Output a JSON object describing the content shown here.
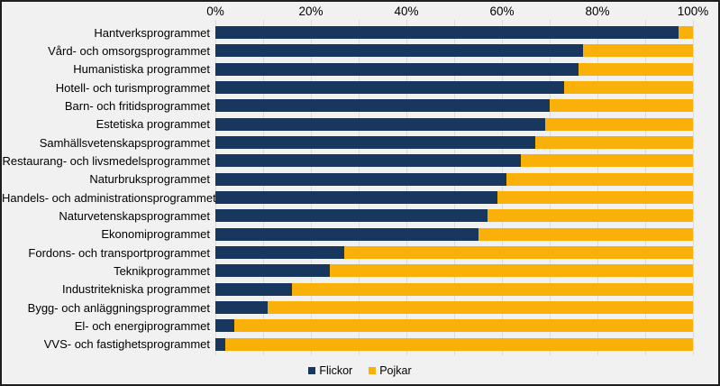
{
  "colors": {
    "flickor": "#17375E",
    "pojkar": "#F9B008",
    "background": "#F1F1F1",
    "gridline": "#DCDCDC",
    "border": "#1F1F1F"
  },
  "axis": {
    "ticks": [
      "0%",
      "20%",
      "40%",
      "60%",
      "80%",
      "100%"
    ],
    "minor_gridline_percents": [
      0,
      10,
      20,
      30,
      40,
      50,
      60,
      70,
      80,
      90,
      100
    ]
  },
  "legend": {
    "items": [
      {
        "label": "Flickor",
        "color": "#17375E"
      },
      {
        "label": "Pojkar",
        "color": "#F9B008"
      }
    ]
  },
  "chart_data": {
    "type": "bar",
    "orientation": "horizontal",
    "stacked": true,
    "title": "",
    "xlabel": "",
    "ylabel": "",
    "xlim": [
      0,
      100
    ],
    "unit": "%",
    "axis_position": "top",
    "legend_position": "bottom",
    "grid": "vertical gridlines every 10%",
    "categories": [
      "Hantverksprogrammet",
      "Vård- och omsorgsprogrammet",
      "Humanistiska programmet",
      "Hotell- och turismprogrammet",
      "Barn- och fritidsprogrammet",
      "Estetiska programmet",
      "Samhällsvetenskapsprogrammet",
      "Restaurang- och livsmedelsprogrammet",
      "Naturbruksprogrammet",
      "Handels- och administrationsprogrammet",
      "Naturvetenskapsprogrammet",
      "Ekonomiprogrammet",
      "Fordons- och transportprogrammet",
      "Teknikprogrammet",
      "Industritekniska programmet",
      "Bygg- och anläggningsprogrammet",
      "El- och energiprogrammet",
      "VVS- och fastighetsprogrammet"
    ],
    "series": [
      {
        "name": "Flickor",
        "color": "#17375E",
        "values": [
          97,
          77,
          76,
          73,
          70,
          69,
          67,
          64,
          61,
          59,
          57,
          55,
          27,
          24,
          16,
          11,
          4,
          2
        ]
      },
      {
        "name": "Pojkar",
        "color": "#F9B008",
        "values": [
          3,
          23,
          24,
          27,
          30,
          31,
          33,
          36,
          39,
          41,
          43,
          45,
          73,
          76,
          84,
          89,
          96,
          98
        ]
      }
    ]
  }
}
